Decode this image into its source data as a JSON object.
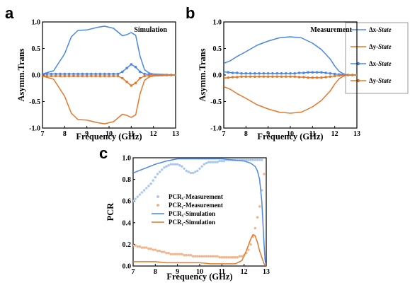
{
  "panels": {
    "a": "a",
    "b": "b",
    "c": "c"
  },
  "colors": {
    "blue": "#4a86e8",
    "orange": "#e3792b",
    "light_blue": "#a9c8ef",
    "light_orange": "#f2b48c"
  },
  "legend_ab": {
    "items": [
      {
        "prefix": "Δx-",
        "state": "State",
        "style": "line",
        "color": "blue"
      },
      {
        "prefix": "Δy-",
        "state": "State",
        "style": "line",
        "color": "orange"
      },
      {
        "prefix": "Δx-",
        "state": "State",
        "style": "marker-line",
        "color": "blue"
      },
      {
        "prefix": "Δy-",
        "state": "State",
        "style": "marker-line",
        "color": "orange"
      }
    ]
  },
  "chart_data": [
    {
      "panel": "a",
      "type": "line",
      "title": "Simulation",
      "xlabel": "Frequency (GHz)",
      "ylabel": "Asymm.Trans",
      "xlim": [
        7,
        13
      ],
      "ylim": [
        -1.0,
        1.0
      ],
      "xticks": [
        "7",
        "8",
        "9",
        "10",
        "11",
        "12",
        "13"
      ],
      "yticks": [
        "-1.0",
        "-0.5",
        "0.0",
        "0.5",
        "1.0"
      ],
      "series": [
        {
          "legend_index": 0,
          "color": "blue",
          "style": "line",
          "x": [
            7.0,
            7.5,
            8.0,
            8.3,
            8.6,
            9.0,
            9.5,
            9.8,
            10.2,
            10.6,
            10.8,
            11.0,
            11.2,
            11.4,
            11.6,
            11.8,
            12.0,
            12.5,
            13.0
          ],
          "y": [
            0.02,
            0.08,
            0.4,
            0.72,
            0.84,
            0.85,
            0.9,
            0.92,
            0.88,
            0.74,
            0.76,
            0.8,
            0.75,
            0.35,
            0.1,
            0.04,
            0.02,
            0.01,
            0.0
          ]
        },
        {
          "legend_index": 1,
          "color": "orange",
          "style": "line",
          "x": [
            7.0,
            7.5,
            8.0,
            8.3,
            8.6,
            9.0,
            9.5,
            9.8,
            10.2,
            10.6,
            10.8,
            11.0,
            11.2,
            11.4,
            11.6,
            11.8,
            12.0,
            12.5,
            13.0
          ],
          "y": [
            -0.02,
            -0.08,
            -0.4,
            -0.72,
            -0.84,
            -0.85,
            -0.9,
            -0.92,
            -0.88,
            -0.74,
            -0.76,
            -0.8,
            -0.75,
            -0.35,
            -0.1,
            -0.04,
            -0.02,
            -0.01,
            0.0
          ]
        },
        {
          "legend_index": 2,
          "color": "blue",
          "style": "marker-line",
          "x": [
            7.0,
            7.2,
            7.4,
            7.6,
            7.8,
            8.0,
            8.2,
            8.4,
            8.6,
            8.8,
            9.0,
            9.2,
            9.4,
            9.6,
            9.8,
            10.0,
            10.2,
            10.4,
            10.6,
            10.8,
            11.0,
            11.2,
            11.4,
            11.6,
            11.8,
            12.0,
            12.2,
            12.4,
            12.6,
            12.8,
            13.0
          ],
          "y": [
            0.02,
            0.02,
            0.02,
            0.02,
            0.02,
            0.02,
            0.02,
            0.02,
            0.02,
            0.02,
            0.02,
            0.02,
            0.02,
            0.02,
            0.02,
            0.02,
            0.02,
            0.02,
            0.06,
            0.13,
            0.2,
            0.15,
            0.06,
            0.02,
            0.01,
            0.0,
            0.0,
            0.0,
            0.0,
            0.0,
            0.0
          ]
        },
        {
          "legend_index": 3,
          "color": "orange",
          "style": "marker-line",
          "x": [
            7.0,
            7.2,
            7.4,
            7.6,
            7.8,
            8.0,
            8.2,
            8.4,
            8.6,
            8.8,
            9.0,
            9.2,
            9.4,
            9.6,
            9.8,
            10.0,
            10.2,
            10.4,
            10.6,
            10.8,
            11.0,
            11.2,
            11.4,
            11.6,
            11.8,
            12.0,
            12.2,
            12.4,
            12.6,
            12.8,
            13.0
          ],
          "y": [
            -0.02,
            -0.02,
            -0.02,
            -0.02,
            -0.02,
            -0.02,
            -0.02,
            -0.02,
            -0.02,
            -0.02,
            -0.02,
            -0.02,
            -0.02,
            -0.02,
            -0.02,
            -0.02,
            -0.02,
            -0.02,
            -0.06,
            -0.13,
            -0.2,
            -0.15,
            -0.06,
            -0.02,
            -0.01,
            0.0,
            0.0,
            0.0,
            0.0,
            0.0,
            0.0
          ]
        }
      ]
    },
    {
      "panel": "b",
      "type": "line",
      "title": "Measurement",
      "xlabel": "Frequency (GHz)",
      "ylabel": "Asymm.Trans",
      "xlim": [
        7,
        13
      ],
      "ylim": [
        -1.0,
        1.0
      ],
      "xticks": [
        "7",
        "8",
        "9",
        "10",
        "11",
        "12",
        "13"
      ],
      "yticks": [
        "-1.0",
        "-0.5",
        "0.0",
        "0.5",
        "1.0"
      ],
      "series": [
        {
          "legend_index": 0,
          "color": "blue",
          "style": "line",
          "x": [
            7.0,
            7.3,
            7.6,
            8.0,
            8.5,
            9.0,
            9.5,
            10.0,
            10.5,
            11.0,
            11.4,
            11.8,
            12.0,
            12.2,
            12.4,
            12.6,
            13.0
          ],
          "y": [
            0.22,
            0.27,
            0.35,
            0.44,
            0.56,
            0.64,
            0.7,
            0.72,
            0.7,
            0.6,
            0.48,
            0.3,
            0.17,
            0.07,
            0.02,
            0.0,
            0.0
          ]
        },
        {
          "legend_index": 1,
          "color": "orange",
          "style": "line",
          "x": [
            7.0,
            7.3,
            7.6,
            8.0,
            8.5,
            9.0,
            9.5,
            10.0,
            10.5,
            11.0,
            11.4,
            11.8,
            12.0,
            12.2,
            12.4,
            12.6,
            13.0
          ],
          "y": [
            -0.22,
            -0.27,
            -0.35,
            -0.44,
            -0.56,
            -0.64,
            -0.7,
            -0.72,
            -0.7,
            -0.6,
            -0.48,
            -0.3,
            -0.17,
            -0.07,
            -0.02,
            0.0,
            0.0
          ]
        },
        {
          "legend_index": 2,
          "color": "blue",
          "style": "marker-line",
          "x": [
            7.0,
            7.2,
            7.4,
            7.6,
            7.8,
            8.0,
            8.2,
            8.4,
            8.6,
            8.8,
            9.0,
            9.2,
            9.4,
            9.6,
            9.8,
            10.0,
            10.2,
            10.4,
            10.6,
            10.8,
            11.0,
            11.2,
            11.4,
            11.6,
            11.8,
            12.0,
            12.2,
            12.4,
            12.6,
            12.8,
            13.0
          ],
          "y": [
            0.06,
            0.05,
            0.04,
            0.04,
            0.03,
            0.03,
            0.03,
            0.03,
            0.03,
            0.03,
            0.03,
            0.03,
            0.03,
            0.03,
            0.03,
            0.03,
            0.03,
            0.04,
            0.04,
            0.05,
            0.05,
            0.05,
            0.05,
            0.04,
            0.03,
            0.02,
            0.01,
            0.01,
            0.0,
            0.0,
            0.0
          ]
        },
        {
          "legend_index": 3,
          "color": "orange",
          "style": "marker-line",
          "x": [
            7.0,
            7.2,
            7.4,
            7.6,
            7.8,
            8.0,
            8.2,
            8.4,
            8.6,
            8.8,
            9.0,
            9.2,
            9.4,
            9.6,
            9.8,
            10.0,
            10.2,
            10.4,
            10.6,
            10.8,
            11.0,
            11.2,
            11.4,
            11.6,
            11.8,
            12.0,
            12.2,
            12.4,
            12.6,
            12.8,
            13.0
          ],
          "y": [
            -0.06,
            -0.05,
            -0.04,
            -0.04,
            -0.03,
            -0.03,
            -0.03,
            -0.03,
            -0.03,
            -0.03,
            -0.03,
            -0.03,
            -0.03,
            -0.03,
            -0.03,
            -0.03,
            -0.03,
            -0.04,
            -0.04,
            -0.05,
            -0.05,
            -0.05,
            -0.05,
            -0.04,
            -0.03,
            -0.02,
            -0.01,
            -0.01,
            0.0,
            0.0,
            0.0
          ]
        }
      ]
    },
    {
      "panel": "c",
      "type": "line",
      "title": "",
      "xlabel": "Frequency (GHz)",
      "ylabel": "PCR",
      "xlim": [
        7,
        13
      ],
      "ylim": [
        0.0,
        1.0
      ],
      "xticks": [
        "7",
        "8",
        "9",
        "10",
        "11",
        "12",
        "13"
      ],
      "yticks": [
        "0.0",
        "0.2",
        "0.4",
        "0.6",
        "0.8",
        "1.0"
      ],
      "legend": [
        "PCRₓ-Measurement",
        "PCRᵧ-Measurement",
        "PCRₓ-Simulation",
        "PCRᵧ-Simulation"
      ],
      "series": [
        {
          "name": "PCRₓ-Measurement",
          "color": "light_blue",
          "style": "scatter",
          "x": [
            7.0,
            7.1,
            7.2,
            7.3,
            7.4,
            7.5,
            7.6,
            7.7,
            7.8,
            7.9,
            8.0,
            8.1,
            8.2,
            8.3,
            8.4,
            8.5,
            8.6,
            8.7,
            8.8,
            8.9,
            9.0,
            9.1,
            9.2,
            9.3,
            9.4,
            9.5,
            9.6,
            9.7,
            9.8,
            9.9,
            10.0,
            10.1,
            10.2,
            10.3,
            10.4,
            10.5,
            10.6,
            10.7,
            10.8,
            10.9,
            11.0,
            11.1,
            11.2,
            11.3,
            11.4,
            11.5,
            11.6,
            11.7,
            11.8,
            11.9,
            12.0,
            12.1,
            12.2,
            12.3,
            12.4,
            12.5,
            12.6,
            12.7,
            12.8
          ],
          "y": [
            0.6,
            0.62,
            0.64,
            0.66,
            0.68,
            0.7,
            0.72,
            0.74,
            0.76,
            0.79,
            0.82,
            0.85,
            0.87,
            0.89,
            0.91,
            0.92,
            0.93,
            0.94,
            0.94,
            0.94,
            0.94,
            0.93,
            0.92,
            0.9,
            0.88,
            0.87,
            0.86,
            0.86,
            0.87,
            0.88,
            0.9,
            0.92,
            0.94,
            0.95,
            0.96,
            0.96,
            0.96,
            0.96,
            0.96,
            0.97,
            0.97,
            0.97,
            0.98,
            0.98,
            0.98,
            0.98,
            0.98,
            0.98,
            0.98,
            0.98,
            0.98,
            0.98,
            0.98,
            0.98,
            0.98,
            0.98,
            0.98,
            0.98,
            0.98
          ]
        },
        {
          "name": "PCRᵧ-Measurement",
          "color": "light_orange",
          "style": "scatter",
          "x": [
            7.0,
            7.1,
            7.2,
            7.3,
            7.4,
            7.5,
            7.6,
            7.7,
            7.8,
            7.9,
            8.0,
            8.1,
            8.2,
            8.3,
            8.4,
            8.5,
            8.6,
            8.7,
            8.8,
            8.9,
            9.0,
            9.1,
            9.2,
            9.3,
            9.4,
            9.5,
            9.6,
            9.7,
            9.8,
            9.9,
            10.0,
            10.1,
            10.2,
            10.3,
            10.4,
            10.5,
            10.6,
            10.7,
            10.8,
            10.9,
            11.0,
            11.1,
            11.2,
            11.3,
            11.4,
            11.5,
            11.6,
            11.7,
            11.8,
            11.9,
            12.0,
            12.1,
            12.2,
            12.3,
            12.4,
            12.5,
            12.6,
            12.7,
            12.8,
            12.9
          ],
          "y": [
            0.19,
            0.19,
            0.18,
            0.18,
            0.17,
            0.17,
            0.17,
            0.16,
            0.16,
            0.15,
            0.15,
            0.14,
            0.14,
            0.13,
            0.13,
            0.12,
            0.12,
            0.11,
            0.11,
            0.11,
            0.11,
            0.11,
            0.11,
            0.1,
            0.1,
            0.1,
            0.1,
            0.09,
            0.09,
            0.09,
            0.09,
            0.09,
            0.09,
            0.09,
            0.09,
            0.09,
            0.09,
            0.09,
            0.09,
            0.08,
            0.08,
            0.08,
            0.08,
            0.08,
            0.08,
            0.08,
            0.08,
            0.08,
            0.09,
            0.09,
            0.1,
            0.12,
            0.15,
            0.2,
            0.27,
            0.35,
            0.45,
            0.55,
            0.7,
            0.85
          ]
        },
        {
          "name": "PCRₓ-Simulation",
          "color": "blue",
          "style": "line",
          "x": [
            7.0,
            7.5,
            8.0,
            8.5,
            9.0,
            9.5,
            10.0,
            10.5,
            11.0,
            11.5,
            12.0,
            12.3,
            12.5,
            12.6,
            12.7,
            12.8,
            12.85,
            12.9,
            12.95,
            13.0
          ],
          "y": [
            0.86,
            0.9,
            0.94,
            0.97,
            0.99,
            0.99,
            0.99,
            0.99,
            0.99,
            0.98,
            0.97,
            0.95,
            0.92,
            0.88,
            0.8,
            0.6,
            0.4,
            0.2,
            0.05,
            0.0
          ]
        },
        {
          "name": "PCRᵧ-Simulation",
          "color": "orange",
          "style": "line",
          "x": [
            7.0,
            7.5,
            8.0,
            8.5,
            9.0,
            9.5,
            10.0,
            10.5,
            11.0,
            11.3,
            11.6,
            11.9,
            12.1,
            12.3,
            12.4,
            12.5,
            12.6,
            12.7,
            12.8,
            12.9,
            13.0
          ],
          "y": [
            0.04,
            0.04,
            0.04,
            0.03,
            0.03,
            0.03,
            0.03,
            0.02,
            0.02,
            0.02,
            0.02,
            0.05,
            0.14,
            0.25,
            0.29,
            0.28,
            0.22,
            0.14,
            0.08,
            0.02,
            0.0
          ]
        }
      ]
    }
  ]
}
